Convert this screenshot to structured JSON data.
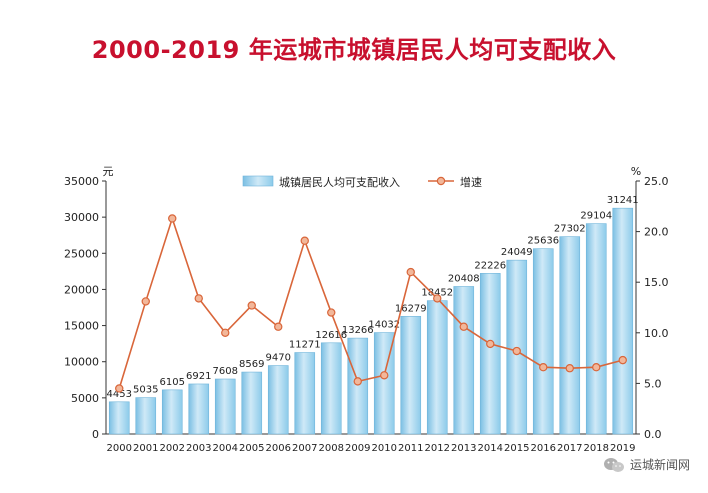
{
  "chart_data": {
    "type": "bar",
    "title": "2000-2019 年运城市城镇居民人均可支配收入",
    "categories": [
      "2000",
      "2001",
      "2002",
      "2003",
      "2004",
      "2005",
      "2006",
      "2007",
      "2008",
      "2009",
      "2010",
      "2011",
      "2012",
      "2013",
      "2014",
      "2015",
      "2016",
      "2017",
      "2018",
      "2019"
    ],
    "series": [
      {
        "name": "城镇居民人均可支配收入",
        "type": "bar",
        "axis": "left",
        "values": [
          4453,
          5035,
          6105,
          6921,
          7608,
          8569,
          9470,
          11271,
          12616,
          13266,
          14032,
          16279,
          18452,
          20408,
          22226,
          24049,
          25636,
          27302,
          29104,
          31241
        ],
        "color": "#9fd1ec"
      },
      {
        "name": "增速",
        "type": "line",
        "axis": "right",
        "values": [
          4.5,
          13.1,
          21.3,
          13.4,
          10.0,
          12.7,
          10.6,
          19.1,
          12.0,
          5.2,
          5.8,
          16.0,
          13.4,
          10.6,
          8.9,
          8.2,
          6.6,
          6.5,
          6.6,
          7.3
        ],
        "color": "#d9663a"
      }
    ],
    "ylabel_left": "元",
    "ylabel_right": "%",
    "ylim_left": [
      0,
      35000
    ],
    "ylim_right": [
      0,
      25
    ],
    "yticks_left": [
      "0",
      "5000",
      "10000",
      "15000",
      "20000",
      "25000",
      "30000",
      "35000"
    ],
    "yticks_right": [
      "0.0",
      "5.0",
      "10.0",
      "15.0",
      "20.0",
      "25.0"
    ],
    "legend_position": "top-center",
    "grid": false
  },
  "watermark": {
    "icon": "wechat-icon",
    "text": "运城新闻网"
  }
}
